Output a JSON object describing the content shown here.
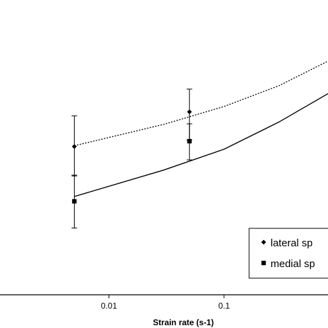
{
  "chart_data": {
    "type": "line",
    "title": "",
    "xlabel": "Strain rate (s-1)",
    "ylabel": "",
    "x_scale": "log",
    "xlim": [
      0.00113,
      0.8
    ],
    "ylim": [
      0,
      1
    ],
    "x_ticks": [
      {
        "value": 0.01,
        "label": "0.01"
      },
      {
        "value": 0.1,
        "label": "0.1"
      }
    ],
    "grid": false,
    "legend": {
      "placement": "bottom-right",
      "entries": [
        {
          "series": "lateral",
          "label": "lateral sp",
          "marker": "diamond"
        },
        {
          "series": "medial",
          "label": "medial sp",
          "marker": "square"
        }
      ]
    },
    "series": [
      {
        "name": "lateral sp",
        "marker": "diamond",
        "points": [
          {
            "x": 0.005,
            "y": 0.555,
            "err_low": 0.445,
            "err_high": 0.67
          },
          {
            "x": 0.05,
            "y": 0.685,
            "err_low": 0.58,
            "err_high": 0.77
          }
        ],
        "trend": {
          "style": "dotted",
          "x": [
            0.005,
            0.03,
            0.1,
            0.3,
            0.8
          ],
          "y": [
            0.558,
            0.638,
            0.705,
            0.783,
            0.875
          ]
        }
      },
      {
        "name": "medial sp",
        "marker": "square",
        "points": [
          {
            "x": 0.005,
            "y": 0.35,
            "err_low": 0.25,
            "err_high": 0.448
          },
          {
            "x": 0.05,
            "y": 0.575,
            "err_low": 0.505,
            "err_high": 0.64
          }
        ],
        "trend": {
          "style": "solid",
          "x": [
            0.005,
            0.03,
            0.1,
            0.3,
            0.8
          ],
          "y": [
            0.368,
            0.467,
            0.545,
            0.647,
            0.753
          ]
        }
      }
    ]
  }
}
